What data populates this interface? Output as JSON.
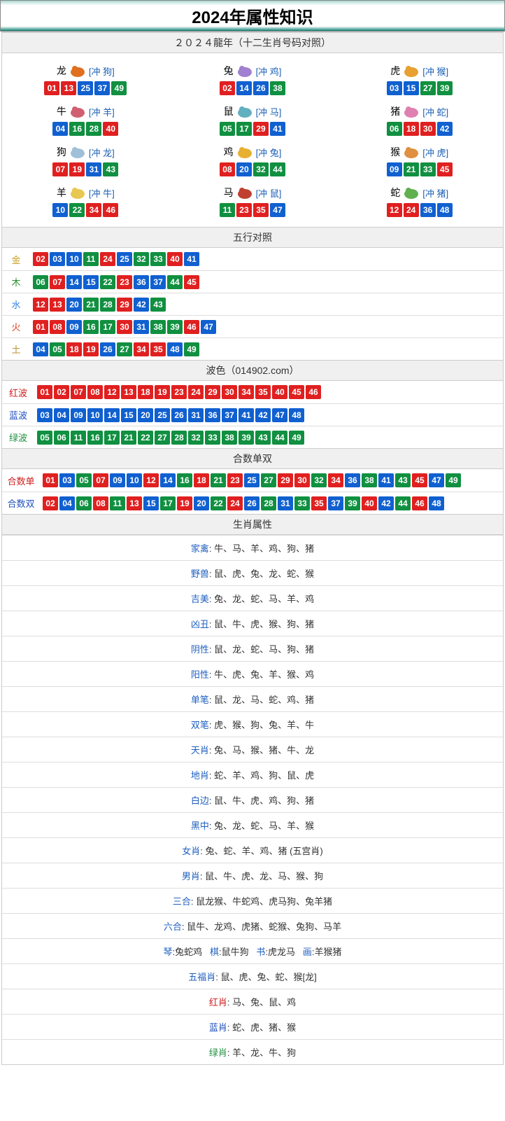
{
  "title": "2024年属性知识",
  "zodiac_header": "２０２４龍年（十二生肖号码对照）",
  "colors": {
    "red": "#e02020",
    "blue": "#1060d0",
    "green": "#109040"
  },
  "numColorMap": {
    "01": "red",
    "02": "red",
    "07": "red",
    "08": "red",
    "12": "red",
    "13": "red",
    "18": "red",
    "19": "red",
    "23": "red",
    "24": "red",
    "29": "red",
    "30": "red",
    "34": "red",
    "35": "red",
    "40": "red",
    "45": "red",
    "46": "red",
    "03": "blue",
    "04": "blue",
    "09": "blue",
    "10": "blue",
    "14": "blue",
    "15": "blue",
    "20": "blue",
    "25": "blue",
    "26": "blue",
    "31": "blue",
    "36": "blue",
    "37": "blue",
    "41": "blue",
    "42": "blue",
    "47": "blue",
    "48": "blue",
    "05": "green",
    "06": "green",
    "11": "green",
    "16": "green",
    "17": "green",
    "21": "green",
    "22": "green",
    "27": "green",
    "28": "green",
    "32": "green",
    "33": "green",
    "38": "green",
    "39": "green",
    "43": "green",
    "44": "green",
    "49": "green"
  },
  "zodiac": [
    {
      "name": "龙",
      "clash": "[冲 狗]",
      "nums": [
        "01",
        "13",
        "25",
        "37",
        "49"
      ],
      "iconColor": "#e07020"
    },
    {
      "name": "兔",
      "clash": "[冲 鸡]",
      "nums": [
        "02",
        "14",
        "26",
        "38"
      ],
      "iconColor": "#a080d0"
    },
    {
      "name": "虎",
      "clash": "[冲 猴]",
      "nums": [
        "03",
        "15",
        "27",
        "39"
      ],
      "iconColor": "#e8a030"
    },
    {
      "name": "牛",
      "clash": "[冲 羊]",
      "nums": [
        "04",
        "16",
        "28",
        "40"
      ],
      "iconColor": "#d06070"
    },
    {
      "name": "鼠",
      "clash": "[冲 马]",
      "nums": [
        "05",
        "17",
        "29",
        "41"
      ],
      "iconColor": "#60b0c0"
    },
    {
      "name": "猪",
      "clash": "[冲 蛇]",
      "nums": [
        "06",
        "18",
        "30",
        "42"
      ],
      "iconColor": "#e080b0"
    },
    {
      "name": "狗",
      "clash": "[冲 龙]",
      "nums": [
        "07",
        "19",
        "31",
        "43"
      ],
      "iconColor": "#a0c0d8"
    },
    {
      "name": "鸡",
      "clash": "[冲 兔]",
      "nums": [
        "08",
        "20",
        "32",
        "44"
      ],
      "iconColor": "#e8b030"
    },
    {
      "name": "猴",
      "clash": "[冲 虎]",
      "nums": [
        "09",
        "21",
        "33",
        "45"
      ],
      "iconColor": "#e09040"
    },
    {
      "name": "羊",
      "clash": "[冲 牛]",
      "nums": [
        "10",
        "22",
        "34",
        "46"
      ],
      "iconColor": "#e8c850"
    },
    {
      "name": "马",
      "clash": "[冲 鼠]",
      "nums": [
        "11",
        "23",
        "35",
        "47"
      ],
      "iconColor": "#c04030"
    },
    {
      "name": "蛇",
      "clash": "[冲 猪]",
      "nums": [
        "12",
        "24",
        "36",
        "48"
      ],
      "iconColor": "#60b050"
    }
  ],
  "wuxing_header": "五行对照",
  "wuxing": [
    {
      "label": "金",
      "cls": "lbl-gold",
      "nums": [
        "02",
        "03",
        "10",
        "11",
        "24",
        "25",
        "32",
        "33",
        "40",
        "41"
      ]
    },
    {
      "label": "木",
      "cls": "lbl-wood",
      "nums": [
        "06",
        "07",
        "14",
        "15",
        "22",
        "23",
        "36",
        "37",
        "44",
        "45"
      ]
    },
    {
      "label": "水",
      "cls": "lbl-water",
      "nums": [
        "12",
        "13",
        "20",
        "21",
        "28",
        "29",
        "42",
        "43"
      ]
    },
    {
      "label": "火",
      "cls": "lbl-fire",
      "nums": [
        "01",
        "08",
        "09",
        "16",
        "17",
        "30",
        "31",
        "38",
        "39",
        "46",
        "47"
      ]
    },
    {
      "label": "土",
      "cls": "lbl-earth",
      "nums": [
        "04",
        "05",
        "18",
        "19",
        "26",
        "27",
        "34",
        "35",
        "48",
        "49"
      ]
    }
  ],
  "bose_header": "波色（014902.com）",
  "bose": [
    {
      "label": "红波",
      "cls": "lbl-red",
      "nums": [
        "01",
        "02",
        "07",
        "08",
        "12",
        "13",
        "18",
        "19",
        "23",
        "24",
        "29",
        "30",
        "34",
        "35",
        "40",
        "45",
        "46"
      ]
    },
    {
      "label": "蓝波",
      "cls": "lbl-blue",
      "nums": [
        "03",
        "04",
        "09",
        "10",
        "14",
        "15",
        "20",
        "25",
        "26",
        "31",
        "36",
        "37",
        "41",
        "42",
        "47",
        "48"
      ]
    },
    {
      "label": "绿波",
      "cls": "lbl-green",
      "nums": [
        "05",
        "06",
        "11",
        "16",
        "17",
        "21",
        "22",
        "27",
        "28",
        "32",
        "33",
        "38",
        "39",
        "43",
        "44",
        "49"
      ]
    }
  ],
  "heshu_header": "合数单双",
  "heshu": [
    {
      "label": "合数单",
      "cls": "lbl-red",
      "nums": [
        "01",
        "03",
        "05",
        "07",
        "09",
        "10",
        "12",
        "14",
        "16",
        "18",
        "21",
        "23",
        "25",
        "27",
        "29",
        "30",
        "32",
        "34",
        "36",
        "38",
        "41",
        "43",
        "45",
        "47",
        "49"
      ]
    },
    {
      "label": "合数双",
      "cls": "lbl-blue",
      "nums": [
        "02",
        "04",
        "06",
        "08",
        "11",
        "13",
        "15",
        "17",
        "19",
        "20",
        "22",
        "24",
        "26",
        "28",
        "31",
        "33",
        "35",
        "37",
        "39",
        "40",
        "42",
        "44",
        "46",
        "48"
      ]
    }
  ],
  "attr_header": "生肖属性",
  "attrs": [
    {
      "label": "家禽",
      "value": "牛、马、羊、鸡、狗、猪"
    },
    {
      "label": "野兽",
      "value": "鼠、虎、兔、龙、蛇、猴"
    },
    {
      "label": "吉美",
      "value": "兔、龙、蛇、马、羊、鸡"
    },
    {
      "label": "凶丑",
      "value": "鼠、牛、虎、猴、狗、猪"
    },
    {
      "label": "阴性",
      "value": "鼠、龙、蛇、马、狗、猪"
    },
    {
      "label": "阳性",
      "value": "牛、虎、兔、羊、猴、鸡"
    },
    {
      "label": "单笔",
      "value": "鼠、龙、马、蛇、鸡、猪"
    },
    {
      "label": "双笔",
      "value": "虎、猴、狗、兔、羊、牛"
    },
    {
      "label": "天肖",
      "value": "兔、马、猴、猪、牛、龙"
    },
    {
      "label": "地肖",
      "value": "蛇、羊、鸡、狗、鼠、虎"
    },
    {
      "label": "白边",
      "value": "鼠、牛、虎、鸡、狗、猪"
    },
    {
      "label": "黑中",
      "value": "兔、龙、蛇、马、羊、猴"
    },
    {
      "label": "女肖",
      "value": "兔、蛇、羊、鸡、猪 (五宫肖)"
    },
    {
      "label": "男肖",
      "value": "鼠、牛、虎、龙、马、猴、狗"
    },
    {
      "label": "三合",
      "value": "鼠龙猴、牛蛇鸡、虎马狗、兔羊猪"
    },
    {
      "label": "六合",
      "value": "鼠牛、龙鸡、虎猪、蛇猴、兔狗、马羊"
    }
  ],
  "qin_row": [
    {
      "label": "琴",
      "value": "兔蛇鸡"
    },
    {
      "label": "棋",
      "value": "鼠牛狗"
    },
    {
      "label": "书",
      "value": "虎龙马"
    },
    {
      "label": "画",
      "value": "羊猴猪"
    }
  ],
  "wufu": {
    "label": "五福肖",
    "value": "鼠、虎、兔、蛇、猴[龙]"
  },
  "color_zodiac": [
    {
      "label": "红肖",
      "cls": "lbl-red",
      "value": "马、兔、鼠、鸡"
    },
    {
      "label": "蓝肖",
      "cls": "lbl-blue",
      "value": "蛇、虎、猪、猴"
    },
    {
      "label": "绿肖",
      "cls": "lbl-green",
      "value": "羊、龙、牛、狗"
    }
  ]
}
